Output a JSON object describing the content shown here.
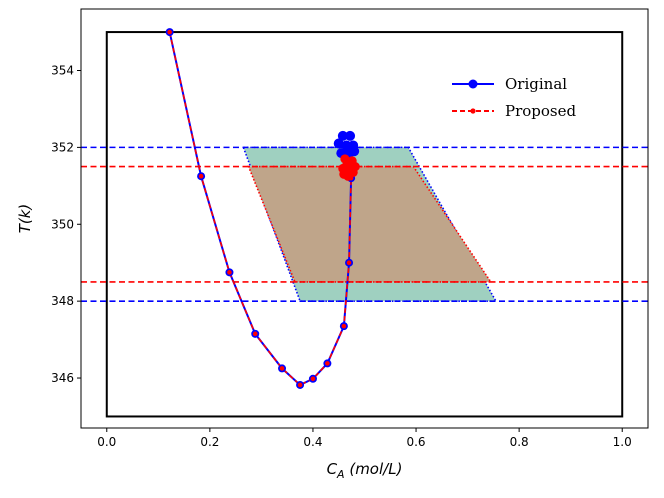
{
  "chart_data": {
    "type": "line",
    "xlabel": "C_A (mol/L)",
    "ylabel": "T(k)",
    "xlim": [
      -0.05,
      1.05
    ],
    "ylim": [
      344.7,
      355.6
    ],
    "xticks": [
      0.0,
      0.2,
      0.4,
      0.6,
      0.8,
      1.0
    ],
    "xtick_labels": [
      "0.0",
      "0.2",
      "0.4",
      "0.6",
      "0.8",
      "1.0"
    ],
    "yticks": [
      346,
      348,
      350,
      352,
      354
    ],
    "ytick_labels": [
      "346",
      "348",
      "350",
      "352",
      "354"
    ],
    "boundary_box": {
      "x": [
        0.0,
        1.0
      ],
      "y": [
        345.0,
        355.0
      ]
    },
    "bounds": {
      "original": {
        "y_low": 348.0,
        "y_high": 352.0,
        "color": "#0000ff"
      },
      "proposed": {
        "y_low": 348.5,
        "y_high": 351.5,
        "color": "#ff0000"
      }
    },
    "regions": {
      "original": {
        "fill": "#9fd0c0",
        "outline": "#0000ff",
        "polygon": [
          [
            0.265,
            352.0
          ],
          [
            0.585,
            352.0
          ],
          [
            0.755,
            348.0
          ],
          [
            0.375,
            348.0
          ]
        ]
      },
      "proposed": {
        "fill": "#bfa58a",
        "outline": "#ff0000",
        "polygon": [
          [
            0.275,
            351.5
          ],
          [
            0.595,
            351.5
          ],
          [
            0.745,
            348.5
          ],
          [
            0.365,
            348.5
          ]
        ]
      }
    },
    "series": [
      {
        "name": "Original",
        "color": "#0000ff",
        "marker": "circle",
        "linestyle": "solid",
        "x": [
          0.122,
          0.183,
          0.238,
          0.288,
          0.34,
          0.375,
          0.4,
          0.428,
          0.46,
          0.47,
          0.474
        ],
        "y": [
          355.0,
          351.25,
          348.75,
          347.15,
          346.25,
          345.82,
          345.98,
          346.38,
          347.35,
          349.0,
          351.2
        ]
      },
      {
        "name": "Proposed",
        "color": "#ff0000",
        "marker": "point",
        "linestyle": "dashed",
        "x": [
          0.122,
          0.183,
          0.238,
          0.288,
          0.34,
          0.375,
          0.4,
          0.428,
          0.46,
          0.47,
          0.474
        ],
        "y": [
          355.0,
          351.25,
          348.75,
          347.15,
          346.25,
          345.82,
          345.98,
          346.38,
          347.35,
          349.0,
          351.2
        ]
      }
    ],
    "clusters": {
      "original": {
        "color": "#0000ff",
        "points": [
          [
            0.458,
            352.3
          ],
          [
            0.472,
            352.3
          ],
          [
            0.45,
            352.1
          ],
          [
            0.465,
            352.05
          ],
          [
            0.478,
            352.05
          ],
          [
            0.455,
            351.85
          ],
          [
            0.47,
            351.85
          ],
          [
            0.48,
            351.9
          ]
        ]
      },
      "proposed": {
        "color": "#ff0000",
        "points": [
          [
            0.462,
            351.7
          ],
          [
            0.476,
            351.65
          ],
          [
            0.466,
            351.55
          ],
          [
            0.482,
            351.5
          ],
          [
            0.458,
            351.45
          ],
          [
            0.472,
            351.42
          ],
          [
            0.46,
            351.3
          ],
          [
            0.478,
            351.35
          ],
          [
            0.468,
            351.25
          ],
          [
            0.474,
            351.45
          ]
        ]
      }
    },
    "legend": {
      "position": "upper-right",
      "entries": [
        {
          "label": "Original",
          "color": "#0000ff",
          "linestyle": "solid",
          "marker": "circle"
        },
        {
          "label": "Proposed",
          "color": "#ff0000",
          "linestyle": "dashed",
          "marker": "point"
        }
      ]
    }
  }
}
